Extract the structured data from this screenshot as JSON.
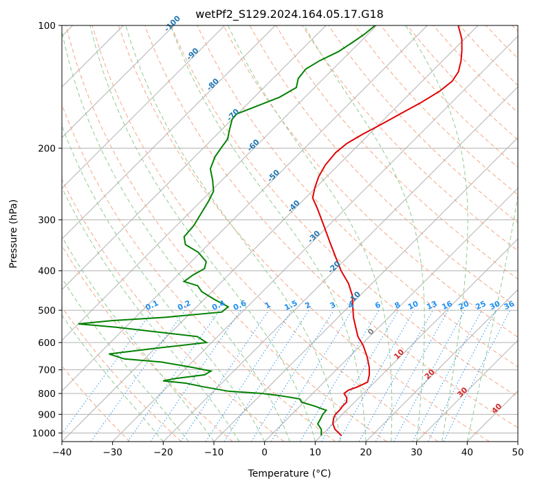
{
  "chart_data": {
    "type": "skew-t",
    "title": "wetPf2_S129.2024.164.05.17.G18",
    "xlabel": "Temperature (°C)",
    "ylabel": "Pressure (hPa)",
    "xlim": [
      -40,
      50
    ],
    "ylim": [
      1050,
      100
    ],
    "y_scale": "log",
    "grid": true,
    "x_ticks": [
      -40,
      -30,
      -20,
      -10,
      0,
      10,
      20,
      30,
      40,
      50
    ],
    "y_ticks": [
      100,
      200,
      300,
      400,
      500,
      600,
      700,
      800,
      900,
      1000
    ],
    "colors": {
      "temperature": "#e00000",
      "dewpoint": "#008000",
      "dry_adiabat": "#f4a582",
      "moist_adiabat": "#8fc98f",
      "mixing_ratio": "#1f8ff0",
      "isotherm": "#b0b0b0",
      "isotherm_label_cold": "#1f77b4",
      "isotherm_label_zero": "#808080",
      "isotherm_label_warm": "#d62728",
      "outer_curve": "#d2b48c"
    },
    "isotherm_labels": [
      "-100",
      "-90",
      "-80",
      "-70",
      "-60",
      "-50",
      "-40",
      "-30",
      "-20",
      "-10",
      "0",
      "10",
      "20",
      "30",
      "40"
    ],
    "mixing_ratio_labels": [
      "0.1",
      "0.2",
      "0.4",
      "0.6",
      "1",
      "1.5",
      "2",
      "3",
      "4",
      "6",
      "8",
      "10",
      "13",
      "16",
      "20",
      "25",
      "30",
      "36"
    ],
    "series": [
      {
        "key": "temperature",
        "points": [
          {
            "p": 1015,
            "t": 14.0
          },
          {
            "p": 980,
            "t": 11.5
          },
          {
            "p": 950,
            "t": 10.0
          },
          {
            "p": 920,
            "t": 9.0
          },
          {
            "p": 900,
            "t": 8.6
          },
          {
            "p": 880,
            "t": 8.6
          },
          {
            "p": 860,
            "t": 8.4
          },
          {
            "p": 840,
            "t": 8.4
          },
          {
            "p": 820,
            "t": 7.6
          },
          {
            "p": 800,
            "t": 6.2
          },
          {
            "p": 785,
            "t": 6.4
          },
          {
            "p": 770,
            "t": 7.6
          },
          {
            "p": 750,
            "t": 8.6
          },
          {
            "p": 720,
            "t": 7.5
          },
          {
            "p": 690,
            "t": 6.0
          },
          {
            "p": 650,
            "t": 3.5
          },
          {
            "p": 610,
            "t": 0.5
          },
          {
            "p": 580,
            "t": -2.3
          },
          {
            "p": 550,
            "t": -4.6
          },
          {
            "p": 520,
            "t": -7.0
          },
          {
            "p": 490,
            "t": -9.2
          },
          {
            "p": 460,
            "t": -11.5
          },
          {
            "p": 430,
            "t": -14.6
          },
          {
            "p": 400,
            "t": -18.6
          },
          {
            "p": 370,
            "t": -22.4
          },
          {
            "p": 340,
            "t": -26.5
          },
          {
            "p": 310,
            "t": -30.9
          },
          {
            "p": 280,
            "t": -35.8
          },
          {
            "p": 265,
            "t": -38.6
          },
          {
            "p": 250,
            "t": -40.2
          },
          {
            "p": 235,
            "t": -41.6
          },
          {
            "p": 220,
            "t": -42.6
          },
          {
            "p": 205,
            "t": -43.0
          },
          {
            "p": 195,
            "t": -42.6
          },
          {
            "p": 185,
            "t": -41.3
          },
          {
            "p": 175,
            "t": -39.6
          },
          {
            "p": 165,
            "t": -37.9
          },
          {
            "p": 155,
            "t": -36.1
          },
          {
            "p": 145,
            "t": -34.6
          },
          {
            "p": 137,
            "t": -34.1
          },
          {
            "p": 130,
            "t": -34.7
          },
          {
            "p": 122,
            "t": -36.4
          },
          {
            "p": 115,
            "t": -38.3
          },
          {
            "p": 108,
            "t": -40.5
          },
          {
            "p": 100,
            "t": -43.9
          }
        ]
      },
      {
        "key": "dewpoint",
        "points": [
          {
            "p": 1015,
            "t": 10.0
          },
          {
            "p": 980,
            "t": 8.8
          },
          {
            "p": 950,
            "t": 7.0
          },
          {
            "p": 920,
            "t": 6.5
          },
          {
            "p": 900,
            "t": 6.1
          },
          {
            "p": 880,
            "t": 6.0
          },
          {
            "p": 860,
            "t": 3.0
          },
          {
            "p": 840,
            "t": -0.5
          },
          {
            "p": 825,
            "t": -1.5
          },
          {
            "p": 810,
            "t": -6.0
          },
          {
            "p": 800,
            "t": -10.0
          },
          {
            "p": 790,
            "t": -17.0
          },
          {
            "p": 770,
            "t": -23.0
          },
          {
            "p": 755,
            "t": -27.0
          },
          {
            "p": 745,
            "t": -32.0
          },
          {
            "p": 735,
            "t": -30.0
          },
          {
            "p": 720,
            "t": -25.0
          },
          {
            "p": 705,
            "t": -24.5
          },
          {
            "p": 690,
            "t": -29.0
          },
          {
            "p": 670,
            "t": -36.0
          },
          {
            "p": 658,
            "t": -44.0
          },
          {
            "p": 640,
            "t": -48.0
          },
          {
            "p": 620,
            "t": -40.0
          },
          {
            "p": 600,
            "t": -31.0
          },
          {
            "p": 580,
            "t": -34.0
          },
          {
            "p": 565,
            "t": -43.0
          },
          {
            "p": 550,
            "t": -52.0
          },
          {
            "p": 540,
            "t": -60.0
          },
          {
            "p": 530,
            "t": -54.0
          },
          {
            "p": 520,
            "t": -44.0
          },
          {
            "p": 505,
            "t": -34.0
          },
          {
            "p": 490,
            "t": -33.8
          },
          {
            "p": 470,
            "t": -38.0
          },
          {
            "p": 450,
            "t": -42.0
          },
          {
            "p": 435,
            "t": -44.0
          },
          {
            "p": 425,
            "t": -47.5
          },
          {
            "p": 410,
            "t": -47.0
          },
          {
            "p": 395,
            "t": -46.0
          },
          {
            "p": 380,
            "t": -47.0
          },
          {
            "p": 360,
            "t": -50.5
          },
          {
            "p": 345,
            "t": -54.5
          },
          {
            "p": 330,
            "t": -56.3
          },
          {
            "p": 310,
            "t": -56.6
          },
          {
            "p": 290,
            "t": -57.5
          },
          {
            "p": 270,
            "t": -58.5
          },
          {
            "p": 255,
            "t": -59.5
          },
          {
            "p": 240,
            "t": -61.8
          },
          {
            "p": 225,
            "t": -64.5
          },
          {
            "p": 210,
            "t": -66.0
          },
          {
            "p": 200,
            "t": -66.5
          },
          {
            "p": 190,
            "t": -67.0
          },
          {
            "p": 180,
            "t": -68.5
          },
          {
            "p": 170,
            "t": -70.0
          },
          {
            "p": 165,
            "t": -70.2
          },
          {
            "p": 160,
            "t": -68.5
          },
          {
            "p": 150,
            "t": -65.0
          },
          {
            "p": 142,
            "t": -63.6
          },
          {
            "p": 135,
            "t": -65.0
          },
          {
            "p": 128,
            "t": -65.4
          },
          {
            "p": 122,
            "t": -64.3
          },
          {
            "p": 116,
            "t": -62.4
          },
          {
            "p": 110,
            "t": -61.4
          },
          {
            "p": 105,
            "t": -60.7
          },
          {
            "p": 100,
            "t": -60.3
          }
        ]
      }
    ]
  }
}
